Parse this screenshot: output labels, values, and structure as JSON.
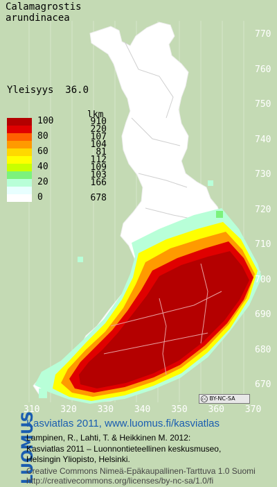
{
  "title": {
    "line1": "Calamagrostis",
    "line2": "arundinacea"
  },
  "frequency": {
    "label": "Yleisyys",
    "value": "36.0"
  },
  "legend": {
    "header": "lkm",
    "classes": [
      {
        "label": "100",
        "color": "#b40000",
        "count": "910"
      },
      {
        "label": "",
        "color": "#e00000",
        "count": "220"
      },
      {
        "label": "80",
        "color": "#ff6000",
        "count": "107"
      },
      {
        "label": "",
        "color": "#ff9a00",
        "count": "104"
      },
      {
        "label": "60",
        "color": "#ffd800",
        "count": "81"
      },
      {
        "label": "",
        "color": "#ffff00",
        "count": "112"
      },
      {
        "label": "40",
        "color": "#c8ff00",
        "count": "109"
      },
      {
        "label": "",
        "color": "#7cf27c",
        "count": "103"
      },
      {
        "label": "20",
        "color": "#b8ffd8",
        "count": "166"
      },
      {
        "label": "",
        "color": "#e8ffff",
        "count": ""
      },
      {
        "label": "0",
        "color": "#ffffff",
        "count": "678"
      }
    ]
  },
  "y_axis": {
    "labels": [
      "770",
      "760",
      "750",
      "740",
      "730",
      "720",
      "710",
      "700",
      "690",
      "680",
      "670"
    ]
  },
  "x_axis": {
    "labels": [
      "310",
      "320",
      "330",
      "340",
      "350",
      "360",
      "370"
    ]
  },
  "license_badge": {
    "text": "BY-NC-SA",
    "icon": "cc-icon"
  },
  "footer": {
    "brand": "LUOMUS",
    "title": "Kasviatlas 2011, www.luomus.fi/kasviatlas",
    "citation1": "Lampinen, R., Lahti, T. & Heikkinen M. 2012:",
    "citation2": "Kasviatlas 2011 – Luonnontieteellinen keskusmuseo,",
    "citation3": "Helsingin Yliopisto, Helsinki.",
    "license1": "Creative Commons Nimeä-Epäkaupallinen-Tarttuva 1.0 Suomi",
    "license2": "http://creativecommons.org/licenses/by-nc-sa/1.0/fi"
  },
  "colors": {
    "background": "#c4dab4",
    "land_empty": "#ffffff",
    "brand_blue": "#1a5db0",
    "dark_red": "#b40000"
  }
}
